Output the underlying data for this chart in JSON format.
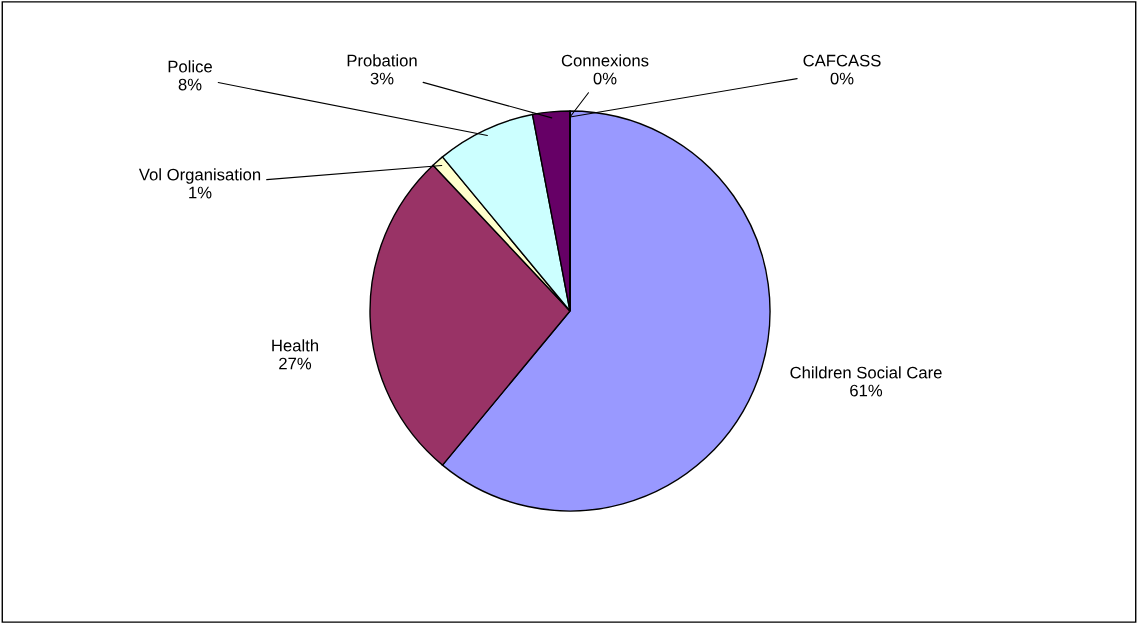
{
  "chart_data": {
    "type": "pie",
    "categories": [
      "Children Social Care",
      "Health",
      "Vol Organisation",
      "Police",
      "Probation",
      "Connexions",
      "CAFCASS"
    ],
    "values": [
      61,
      27,
      1,
      8,
      3,
      0,
      0
    ],
    "value_labels": [
      "61%",
      "27%",
      "1%",
      "8%",
      "3%",
      "0%",
      "0%"
    ],
    "colors": [
      "#9999ff",
      "#993366",
      "#ffffcc",
      "#ccffff",
      "#660066",
      "#ff8080",
      "#0066cc"
    ],
    "legend": false
  }
}
